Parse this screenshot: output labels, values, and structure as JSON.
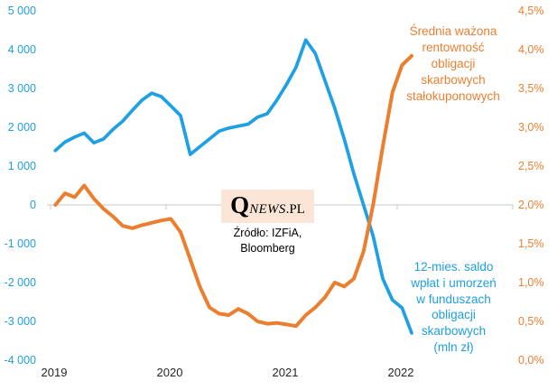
{
  "chart_data": {
    "type": "line",
    "x_monthly": [
      "2019-01",
      "2019-02",
      "2019-03",
      "2019-04",
      "2019-05",
      "2019-06",
      "2019-07",
      "2019-08",
      "2019-09",
      "2019-10",
      "2019-11",
      "2019-12",
      "2020-01",
      "2020-02",
      "2020-03",
      "2020-04",
      "2020-05",
      "2020-06",
      "2020-07",
      "2020-08",
      "2020-09",
      "2020-10",
      "2020-11",
      "2020-12",
      "2021-01",
      "2021-02",
      "2021-03",
      "2021-04",
      "2021-05",
      "2021-06",
      "2021-07",
      "2021-08",
      "2021-09",
      "2021-10",
      "2021-11",
      "2021-12",
      "2022-01",
      "2022-02"
    ],
    "x_axis": {
      "labels": [
        "2019",
        "2020",
        "2021",
        "2022"
      ],
      "color": "#262626"
    },
    "left_axis": {
      "min": -4000,
      "max": 5000,
      "step": 1000,
      "color": "#1EA0E2",
      "labels": [
        "5 000",
        "4 000",
        "3 000",
        "2 000",
        "1 000",
        "0",
        "-1 000",
        "-2 000",
        "-3 000",
        "-4 000"
      ]
    },
    "right_axis": {
      "min": 0.0,
      "max": 4.5,
      "step": 0.5,
      "color": "#EC7F2F",
      "labels": [
        "4,5%",
        "4,0%",
        "3,5%",
        "3,0%",
        "2,5%",
        "2,0%",
        "1,5%",
        "1,0%",
        "0,5%",
        "0,0%"
      ]
    },
    "series": [
      {
        "name": "12-mies. saldo wpłat i umorzeń w funduszach obligacji skarbowych (mln zł)",
        "axis": "left",
        "color": "#1EA0E2",
        "values": [
          1400,
          1620,
          1750,
          1850,
          1600,
          1700,
          1950,
          2160,
          2440,
          2700,
          2880,
          2790,
          2550,
          2300,
          1300,
          1500,
          1700,
          1900,
          1980,
          2030,
          2080,
          2260,
          2350,
          2700,
          3100,
          3550,
          4250,
          3900,
          3200,
          2500,
          1700,
          800,
          0,
          -800,
          -1900,
          -2450,
          -2650,
          -3300
        ]
      },
      {
        "name": "Średnia ważona rentowność obligacji skarbowych stałokuponowych",
        "axis": "right",
        "color": "#EC7F2F",
        "values": [
          2.0,
          2.15,
          2.1,
          2.25,
          2.08,
          1.95,
          1.85,
          1.73,
          1.7,
          1.74,
          1.77,
          1.8,
          1.82,
          1.65,
          1.3,
          0.95,
          0.68,
          0.6,
          0.58,
          0.66,
          0.6,
          0.5,
          0.47,
          0.48,
          0.46,
          0.44,
          0.58,
          0.68,
          0.81,
          1.0,
          0.95,
          1.05,
          1.4,
          2.0,
          2.75,
          3.45,
          3.8,
          3.92
        ]
      }
    ],
    "grid": "horizontal zero line only, with year tick marks",
    "legend": "none"
  },
  "annotations": {
    "yield": {
      "text": "Średnia ważona\nrentowność\nobligacji\nskarbowych\nstałokuponowych",
      "color": "#EC7F2F"
    },
    "flows": {
      "text": "12-mies. saldo\nwpłat i umorzeń\nw funduszach\nobligacji\nskarbowych\n(mln zł)",
      "color": "#1EA0E2"
    }
  },
  "logo": {
    "q": "Q",
    "news": "NEWS",
    "pl": ".PL",
    "bg": "#FBE5D6"
  },
  "source": {
    "text": "Źródło: IZFiA,\nBloomberg"
  }
}
